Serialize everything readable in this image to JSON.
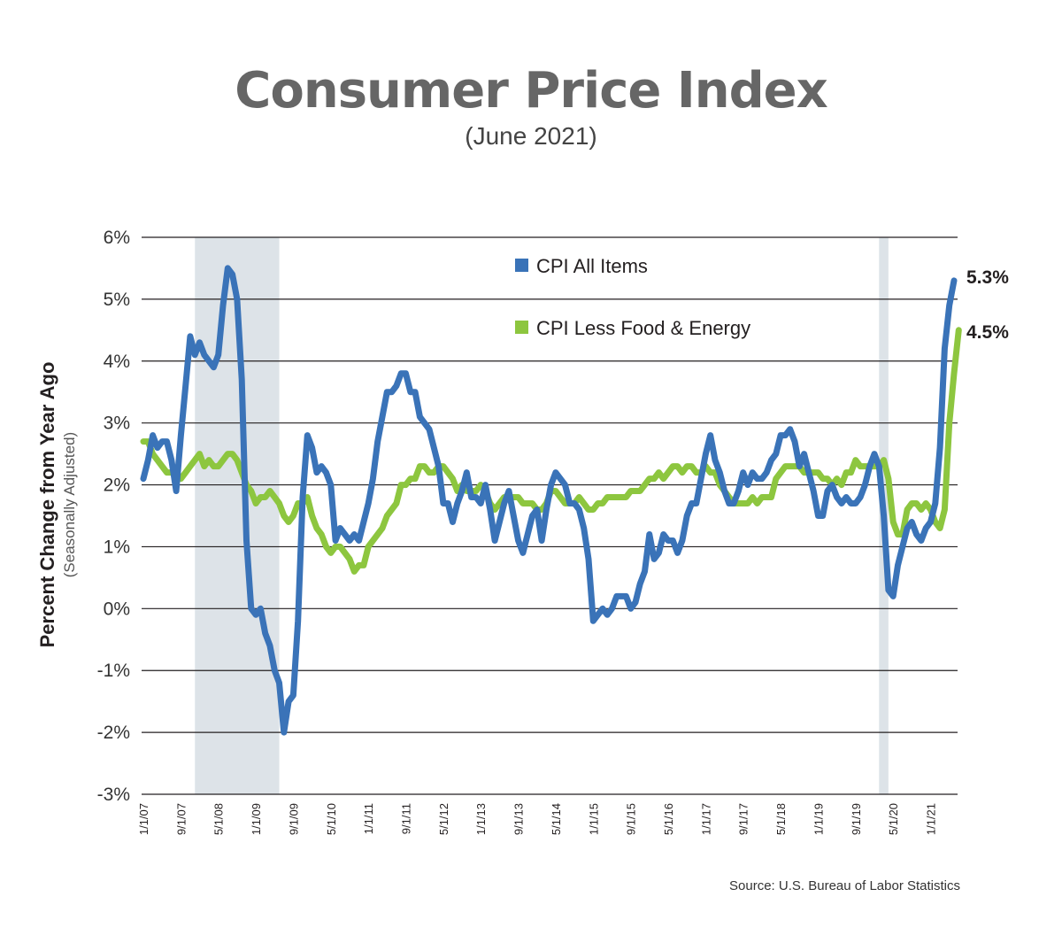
{
  "chart_data": {
    "type": "line",
    "title": "Consumer Price Index",
    "subtitle": "(June 2021)",
    "ylabel": "Percent Change from Year Ago",
    "ylabel_note": "(Seasonally Adjusted)",
    "source": "Source: U.S. Bureau of Labor Statistics",
    "ylim": [
      -3,
      6
    ],
    "y_ticks": [
      6,
      5,
      4,
      3,
      2,
      1,
      0,
      -1,
      -2,
      -3
    ],
    "y_tick_labels": [
      "6%",
      "5%",
      "4%",
      "3%",
      "2%",
      "1%",
      "0%",
      "-1%",
      "-2%",
      "-3%"
    ],
    "x_tick_labels": [
      "1/1/07",
      "9/1/07",
      "5/1/08",
      "1/1/09",
      "9/1/09",
      "5/1/10",
      "1/1/11",
      "9/1/11",
      "5/1/12",
      "1/1/13",
      "9/1/13",
      "5/1/14",
      "1/1/15",
      "9/1/15",
      "5/1/16",
      "1/1/17",
      "9/1/17",
      "5/1/18",
      "1/1/19",
      "9/1/19",
      "5/1/20",
      "1/1/21"
    ],
    "x_tick_index": [
      0,
      8,
      16,
      24,
      32,
      40,
      48,
      56,
      64,
      72,
      80,
      88,
      96,
      104,
      112,
      120,
      128,
      136,
      144,
      152,
      160,
      168
    ],
    "recessions": [
      {
        "start": "12/1/07",
        "end": "6/1/09"
      },
      {
        "start": "2/1/20",
        "end": "4/1/20"
      }
    ],
    "grid": true,
    "legend_position": "top-center",
    "colors": {
      "all_items": "#3a73b8",
      "core": "#8dc63f",
      "recession": "#dde3e8"
    },
    "series": [
      {
        "name": "CPI All Items",
        "end_label": "5.3%",
        "values": [
          2.1,
          2.4,
          2.8,
          2.6,
          2.7,
          2.7,
          2.4,
          1.9,
          2.8,
          3.6,
          4.4,
          4.1,
          4.3,
          4.1,
          4.0,
          3.9,
          4.1,
          4.9,
          5.5,
          5.4,
          5.0,
          3.7,
          1.1,
          0.0,
          -0.1,
          0.0,
          -0.4,
          -0.6,
          -1.0,
          -1.2,
          -2.0,
          -1.5,
          -1.4,
          -0.2,
          1.8,
          2.8,
          2.6,
          2.2,
          2.3,
          2.2,
          2.0,
          1.1,
          1.3,
          1.2,
          1.1,
          1.2,
          1.1,
          1.4,
          1.7,
          2.1,
          2.7,
          3.1,
          3.5,
          3.5,
          3.6,
          3.8,
          3.8,
          3.5,
          3.5,
          3.1,
          3.0,
          2.9,
          2.6,
          2.3,
          1.7,
          1.7,
          1.4,
          1.7,
          1.9,
          2.2,
          1.8,
          1.8,
          1.7,
          2.0,
          1.6,
          1.1,
          1.4,
          1.7,
          1.9,
          1.5,
          1.1,
          0.9,
          1.2,
          1.5,
          1.6,
          1.1,
          1.6,
          2.0,
          2.2,
          2.1,
          2.0,
          1.7,
          1.7,
          1.6,
          1.3,
          0.8,
          -0.2,
          -0.1,
          0.0,
          -0.1,
          0.0,
          0.2,
          0.2,
          0.2,
          0.0,
          0.1,
          0.4,
          0.6,
          1.2,
          0.8,
          0.9,
          1.2,
          1.1,
          1.1,
          0.9,
          1.1,
          1.5,
          1.7,
          1.7,
          2.1,
          2.5,
          2.8,
          2.4,
          2.2,
          1.9,
          1.7,
          1.7,
          1.9,
          2.2,
          2.0,
          2.2,
          2.1,
          2.1,
          2.2,
          2.4,
          2.5,
          2.8,
          2.8,
          2.9,
          2.7,
          2.3,
          2.5,
          2.2,
          1.9,
          1.5,
          1.5,
          1.9,
          2.0,
          1.8,
          1.7,
          1.8,
          1.7,
          1.7,
          1.8,
          2.0,
          2.3,
          2.5,
          2.3,
          1.5,
          0.3,
          0.2,
          0.7,
          1.0,
          1.3,
          1.4,
          1.2,
          1.1,
          1.3,
          1.4,
          1.7,
          2.6,
          4.2,
          4.9,
          5.3
        ]
      },
      {
        "name": "CPI Less Food & Energy",
        "end_label": "4.5%",
        "values": [
          2.7,
          2.7,
          2.5,
          2.4,
          2.3,
          2.2,
          2.2,
          2.2,
          2.1,
          2.2,
          2.3,
          2.4,
          2.5,
          2.3,
          2.4,
          2.3,
          2.3,
          2.4,
          2.5,
          2.5,
          2.4,
          2.2,
          2.0,
          1.9,
          1.7,
          1.8,
          1.8,
          1.9,
          1.8,
          1.7,
          1.5,
          1.4,
          1.5,
          1.7,
          1.7,
          1.8,
          1.5,
          1.3,
          1.2,
          1.0,
          0.9,
          1.0,
          1.0,
          0.9,
          0.8,
          0.6,
          0.7,
          0.7,
          1.0,
          1.1,
          1.2,
          1.3,
          1.5,
          1.6,
          1.7,
          2.0,
          2.0,
          2.1,
          2.1,
          2.3,
          2.3,
          2.2,
          2.2,
          2.3,
          2.3,
          2.2,
          2.1,
          1.9,
          2.0,
          1.9,
          1.9,
          1.9,
          2.0,
          1.9,
          1.7,
          1.6,
          1.7,
          1.8,
          1.8,
          1.8,
          1.8,
          1.7,
          1.7,
          1.7,
          1.6,
          1.6,
          1.7,
          1.9,
          1.9,
          1.8,
          1.7,
          1.7,
          1.7,
          1.8,
          1.7,
          1.6,
          1.6,
          1.7,
          1.7,
          1.8,
          1.8,
          1.8,
          1.8,
          1.8,
          1.9,
          1.9,
          1.9,
          2.0,
          2.1,
          2.1,
          2.2,
          2.1,
          2.2,
          2.3,
          2.3,
          2.2,
          2.3,
          2.3,
          2.2,
          2.2,
          2.3,
          2.2,
          2.2,
          2.0,
          1.9,
          1.8,
          1.7,
          1.7,
          1.7,
          1.7,
          1.8,
          1.7,
          1.8,
          1.8,
          1.8,
          2.1,
          2.2,
          2.3,
          2.3,
          2.3,
          2.3,
          2.2,
          2.2,
          2.2,
          2.2,
          2.1,
          2.1,
          2.0,
          2.1,
          2.0,
          2.2,
          2.2,
          2.4,
          2.3,
          2.3,
          2.3,
          2.3,
          2.3,
          2.4,
          2.1,
          1.4,
          1.2,
          1.2,
          1.6,
          1.7,
          1.7,
          1.6,
          1.7,
          1.6,
          1.4,
          1.3,
          1.6,
          3.0,
          3.8,
          4.5
        ]
      }
    ]
  }
}
